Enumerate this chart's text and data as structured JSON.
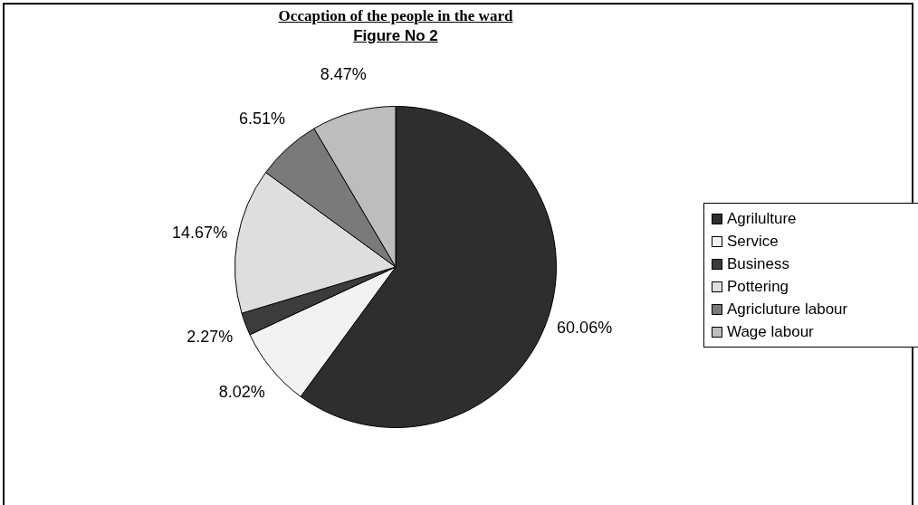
{
  "chart_data": {
    "type": "pie",
    "title": "Occaption of the  people in the ward",
    "subtitle": "Figure No 2",
    "categories": [
      "Agrilulture",
      "Service",
      "Business",
      "Pottering",
      "Agricluture labour",
      "Wage labour"
    ],
    "values": [
      60.06,
      8.02,
      2.27,
      14.67,
      6.51,
      8.47
    ],
    "value_labels": [
      "60.06%",
      "8.02%",
      "2.27%",
      "14.67%",
      "6.51%",
      "8.47%"
    ],
    "colors": [
      "#2e2e2e",
      "#f2f2f2",
      "#3c3c3c",
      "#dedede",
      "#7a7a7a",
      "#bdbdbd"
    ],
    "legend": "right"
  }
}
